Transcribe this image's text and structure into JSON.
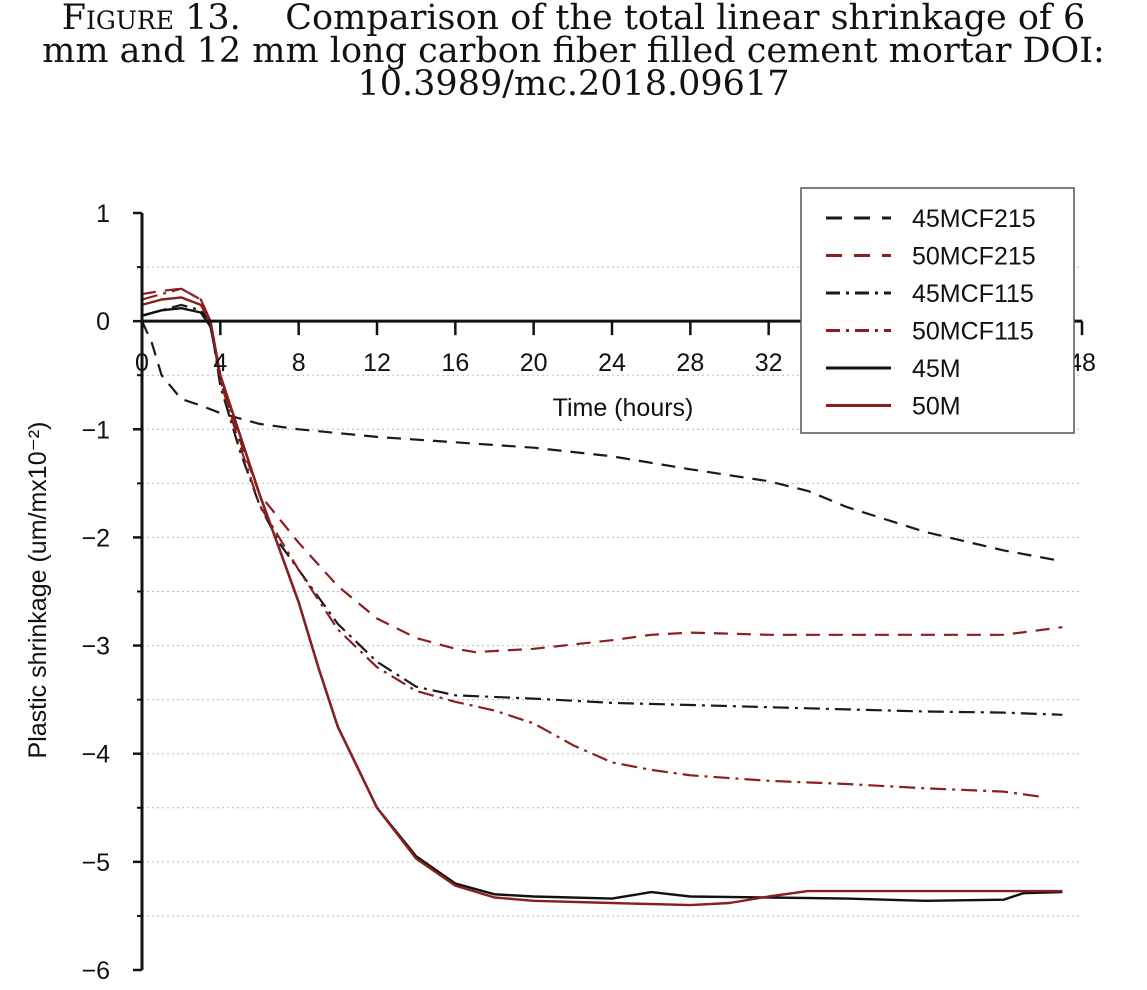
{
  "caption": {
    "label": "Figure 13.",
    "text_line1": "Comparison of the total linear shrinkage of 6",
    "text_line2": "mm and 12 mm long carbon fiber filled cement mortar DOI:",
    "text_line3": "10.3989/mc.2018.09617"
  },
  "chart_data": {
    "type": "line",
    "xlabel": "Time (hours)",
    "ylabel": "Plastic shrinkage (um/mx10⁻²)",
    "xlim": [
      0,
      48
    ],
    "ylim": [
      -6,
      1
    ],
    "xticks": [
      0,
      4,
      8,
      12,
      16,
      20,
      24,
      28,
      32,
      48
    ],
    "xtick_labels": [
      "0",
      "4",
      "8",
      "12",
      "16",
      "20",
      "24",
      "28",
      "32",
      "48"
    ],
    "yticks": [
      1,
      0,
      -1,
      -2,
      -3,
      -4,
      -5,
      -6
    ],
    "ytick_labels": [
      "1",
      "0",
      "−1",
      "−2",
      "−3",
      "−4",
      "−5",
      "−6"
    ],
    "grid": "horizontal dotted",
    "legend_position": "top-right",
    "series": [
      {
        "name": "45MCF215",
        "color": "#1a1a1a",
        "dash": "dashed",
        "points": [
          [
            0,
            0
          ],
          [
            0.5,
            -0.2
          ],
          [
            1,
            -0.5
          ],
          [
            2,
            -0.72
          ],
          [
            3,
            -0.78
          ],
          [
            4,
            -0.85
          ],
          [
            6,
            -0.95
          ],
          [
            8,
            -1.0
          ],
          [
            12,
            -1.07
          ],
          [
            16,
            -1.12
          ],
          [
            20,
            -1.17
          ],
          [
            24,
            -1.25
          ],
          [
            28,
            -1.37
          ],
          [
            32,
            -1.48
          ],
          [
            34,
            -1.57
          ],
          [
            36,
            -1.72
          ],
          [
            40,
            -1.95
          ],
          [
            44,
            -2.12
          ],
          [
            47,
            -2.22
          ]
        ]
      },
      {
        "name": "50MCF215",
        "color": "#8b1e1e",
        "dash": "dashed",
        "points": [
          [
            0,
            0.25
          ],
          [
            1,
            0.28
          ],
          [
            2,
            0.3
          ],
          [
            3,
            0.2
          ],
          [
            3.5,
            0
          ],
          [
            4,
            -0.55
          ],
          [
            5,
            -1.1
          ],
          [
            6,
            -1.6
          ],
          [
            8,
            -2.05
          ],
          [
            10,
            -2.45
          ],
          [
            12,
            -2.75
          ],
          [
            14,
            -2.93
          ],
          [
            16,
            -3.03
          ],
          [
            17,
            -3.06
          ],
          [
            20,
            -3.03
          ],
          [
            24,
            -2.95
          ],
          [
            26,
            -2.9
          ],
          [
            28,
            -2.88
          ],
          [
            32,
            -2.9
          ],
          [
            36,
            -2.9
          ],
          [
            40,
            -2.9
          ],
          [
            44,
            -2.9
          ],
          [
            47,
            -2.83
          ]
        ]
      },
      {
        "name": "45MCF115",
        "color": "#1a1a1a",
        "dash": "dashdot",
        "points": [
          [
            0,
            0.05
          ],
          [
            1,
            0.1
          ],
          [
            2,
            0.15
          ],
          [
            3,
            0.1
          ],
          [
            3.5,
            0
          ],
          [
            4,
            -0.6
          ],
          [
            5,
            -1.2
          ],
          [
            6,
            -1.7
          ],
          [
            7,
            -2.05
          ],
          [
            8,
            -2.3
          ],
          [
            10,
            -2.8
          ],
          [
            12,
            -3.15
          ],
          [
            14,
            -3.38
          ],
          [
            16,
            -3.46
          ],
          [
            20,
            -3.49
          ],
          [
            24,
            -3.53
          ],
          [
            28,
            -3.55
          ],
          [
            32,
            -3.57
          ],
          [
            36,
            -3.59
          ],
          [
            40,
            -3.61
          ],
          [
            44,
            -3.62
          ],
          [
            47,
            -3.64
          ]
        ]
      },
      {
        "name": "50MCF115",
        "color": "#8b1e1e",
        "dash": "dashdot",
        "points": [
          [
            0,
            0.2
          ],
          [
            1,
            0.25
          ],
          [
            2,
            0.3
          ],
          [
            3,
            0.2
          ],
          [
            3.5,
            0
          ],
          [
            4,
            -0.55
          ],
          [
            5,
            -1.15
          ],
          [
            6,
            -1.7
          ],
          [
            8,
            -2.3
          ],
          [
            10,
            -2.85
          ],
          [
            12,
            -3.2
          ],
          [
            14,
            -3.42
          ],
          [
            16,
            -3.52
          ],
          [
            18,
            -3.6
          ],
          [
            20,
            -3.72
          ],
          [
            22,
            -3.92
          ],
          [
            24,
            -4.08
          ],
          [
            26,
            -4.15
          ],
          [
            28,
            -4.2
          ],
          [
            32,
            -4.25
          ],
          [
            36,
            -4.28
          ],
          [
            40,
            -4.32
          ],
          [
            44,
            -4.35
          ],
          [
            46,
            -4.4
          ]
        ]
      },
      {
        "name": "45M",
        "color": "#111111",
        "dash": "solid",
        "points": [
          [
            0,
            0.05
          ],
          [
            1,
            0.1
          ],
          [
            2,
            0.12
          ],
          [
            3,
            0.08
          ],
          [
            3.5,
            -0.05
          ],
          [
            4,
            -0.5
          ],
          [
            5,
            -1.05
          ],
          [
            6,
            -1.6
          ],
          [
            7,
            -2.1
          ],
          [
            8,
            -2.6
          ],
          [
            9,
            -3.2
          ],
          [
            10,
            -3.75
          ],
          [
            12,
            -4.5
          ],
          [
            14,
            -4.95
          ],
          [
            16,
            -5.2
          ],
          [
            18,
            -5.3
          ],
          [
            20,
            -5.32
          ],
          [
            24,
            -5.34
          ],
          [
            26,
            -5.28
          ],
          [
            28,
            -5.32
          ],
          [
            32,
            -5.33
          ],
          [
            36,
            -5.34
          ],
          [
            40,
            -5.36
          ],
          [
            44,
            -5.35
          ],
          [
            45,
            -5.29
          ],
          [
            47,
            -5.28
          ]
        ]
      },
      {
        "name": "50M",
        "color": "#8b1e1e",
        "dash": "solid",
        "points": [
          [
            0,
            0.15
          ],
          [
            1,
            0.2
          ],
          [
            2,
            0.22
          ],
          [
            3,
            0.15
          ],
          [
            3.5,
            0
          ],
          [
            4,
            -0.5
          ],
          [
            5,
            -1.05
          ],
          [
            6,
            -1.6
          ],
          [
            7,
            -2.1
          ],
          [
            8,
            -2.6
          ],
          [
            9,
            -3.2
          ],
          [
            10,
            -3.75
          ],
          [
            12,
            -4.5
          ],
          [
            14,
            -4.97
          ],
          [
            16,
            -5.22
          ],
          [
            18,
            -5.33
          ],
          [
            20,
            -5.36
          ],
          [
            24,
            -5.38
          ],
          [
            28,
            -5.4
          ],
          [
            30,
            -5.38
          ],
          [
            32,
            -5.32
          ],
          [
            34,
            -5.27
          ],
          [
            36,
            -5.27
          ],
          [
            40,
            -5.27
          ],
          [
            44,
            -5.27
          ],
          [
            47,
            -5.27
          ]
        ]
      }
    ]
  }
}
